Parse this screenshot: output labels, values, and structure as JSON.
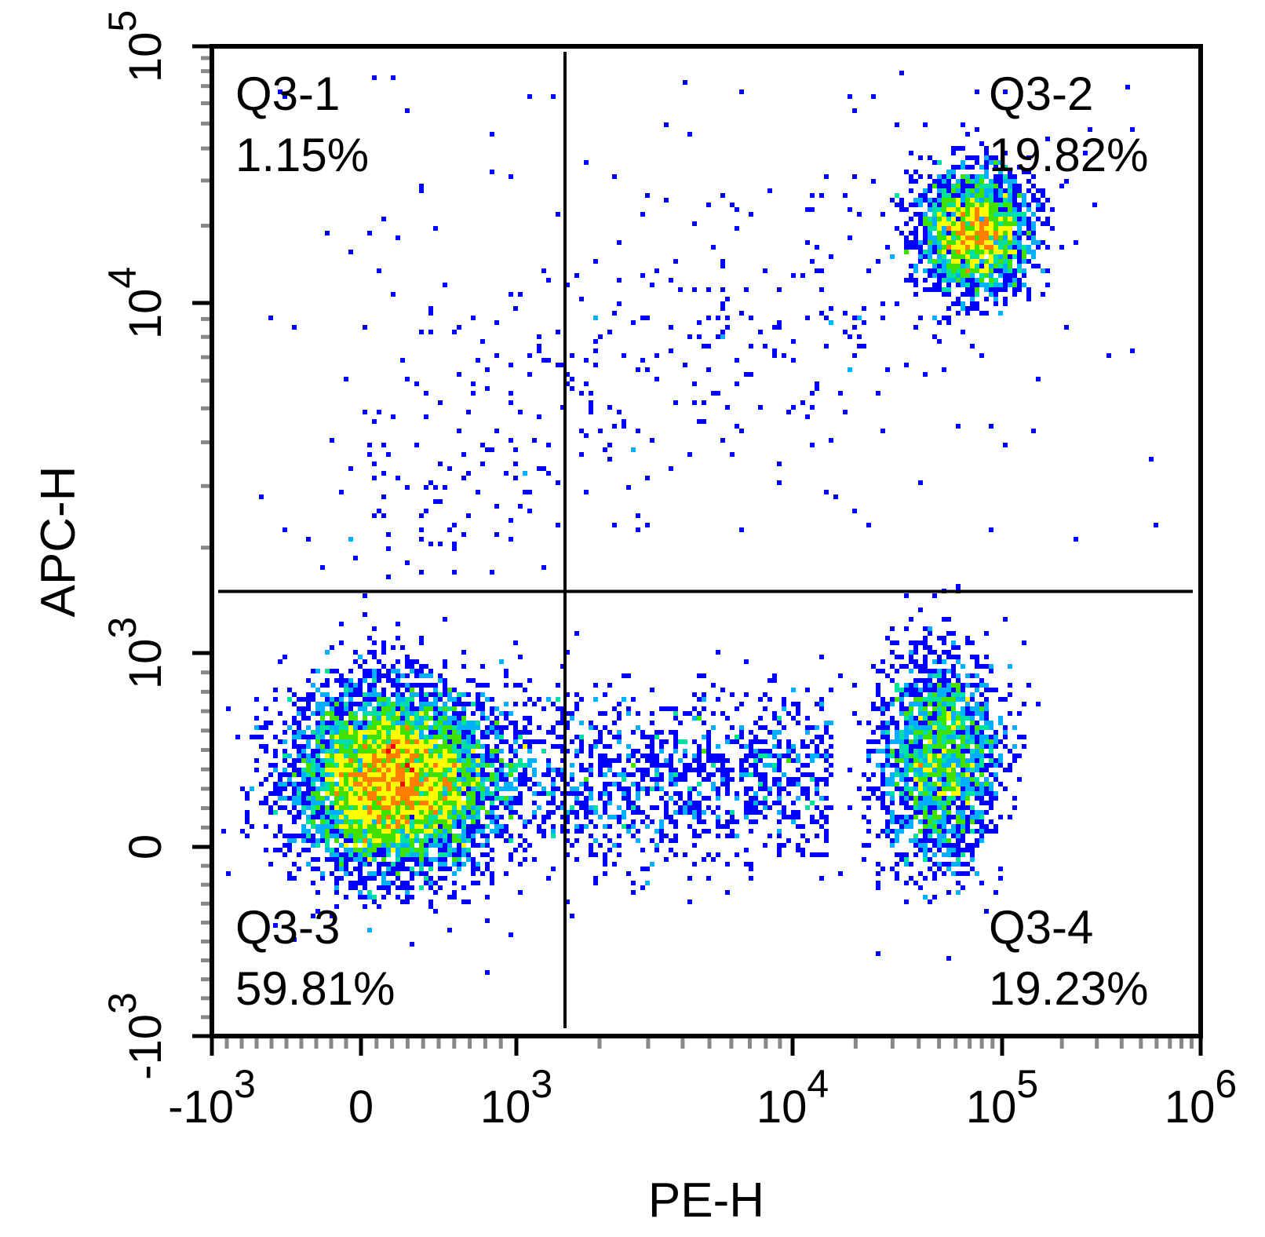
{
  "chart_data": {
    "type": "scatter",
    "subtype": "flow-cytometry density plot",
    "xlabel": "PE-H",
    "ylabel": "APC-H",
    "x_scale": "biexponential",
    "y_scale": "biexponential",
    "xlim": [
      -1000,
      1000000
    ],
    "ylim": [
      -1000,
      100000
    ],
    "x_ticks": [
      {
        "value": -1000,
        "base": "-10",
        "exp": "3"
      },
      {
        "value": 0,
        "base": "0",
        "exp": ""
      },
      {
        "value": 1000,
        "base": "10",
        "exp": "3"
      },
      {
        "value": 10000,
        "base": "10",
        "exp": "4"
      },
      {
        "value": 100000,
        "base": "10",
        "exp": "5"
      },
      {
        "value": 1000000,
        "base": "10",
        "exp": "6"
      }
    ],
    "y_ticks": [
      {
        "value": -1000,
        "base": "-10",
        "exp": "3"
      },
      {
        "value": 0,
        "base": "0",
        "exp": ""
      },
      {
        "value": 1000,
        "base": "10",
        "exp": "3"
      },
      {
        "value": 10000,
        "base": "10",
        "exp": "4"
      },
      {
        "value": 100000,
        "base": "10",
        "exp": "5"
      }
    ],
    "gate": {
      "x": 1500,
      "y": 1500
    },
    "quadrants": [
      {
        "name": "Q3-1",
        "percent": "1.15%"
      },
      {
        "name": "Q3-2",
        "percent": "19.82%"
      },
      {
        "name": "Q3-3",
        "percent": "59.81%"
      },
      {
        "name": "Q3-4",
        "percent": "19.23%"
      }
    ],
    "populations": [
      {
        "quadrant": "Q3-3",
        "x_center": 200,
        "y_center": 350
      },
      {
        "quadrant": "Q3-4",
        "x_center": 50000,
        "y_center": 450
      },
      {
        "quadrant": "Q3-2",
        "x_center": 75000,
        "y_center": 19000
      }
    ],
    "colormap": [
      "#0000ff",
      "#00b0ff",
      "#00e0a0",
      "#40e000",
      "#ffff00",
      "#ff8000",
      "#ff0000"
    ],
    "grid": false,
    "legend": "none"
  }
}
